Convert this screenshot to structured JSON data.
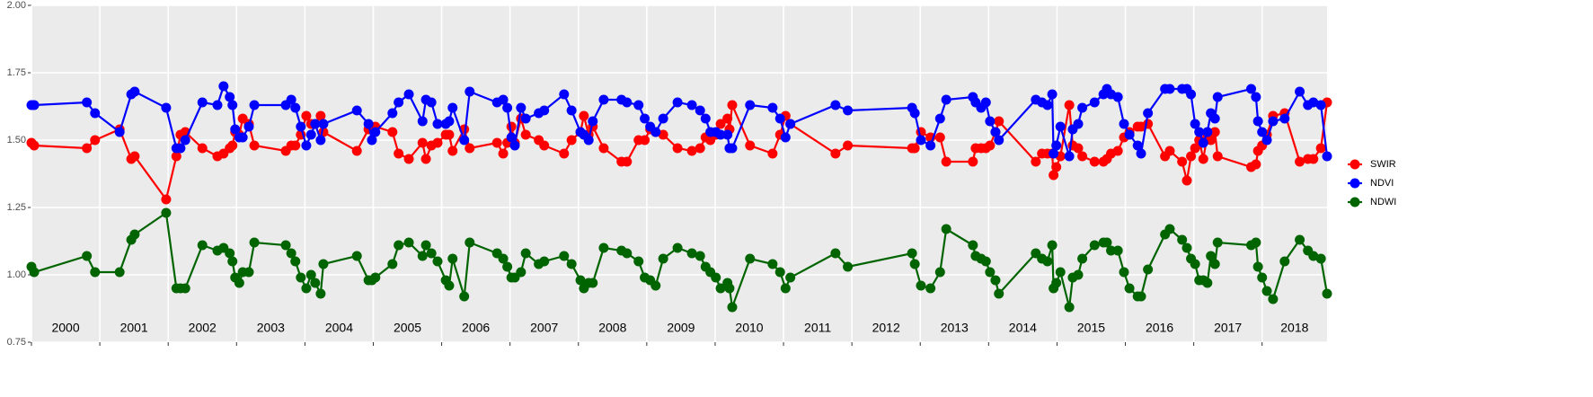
{
  "chart_data": {
    "type": "line",
    "x": [
      2000.0,
      2000.04,
      2000.81,
      2000.93,
      2001.29,
      2001.46,
      2001.51,
      2001.97,
      2002.12,
      2002.18,
      2002.25,
      2002.5,
      2002.72,
      2002.81,
      2002.9,
      2002.94,
      2002.98,
      2003.04,
      2003.09,
      2003.18,
      2003.26,
      2003.72,
      2003.8,
      2003.86,
      2003.94,
      2004.02,
      2004.09,
      2004.15,
      2004.23,
      2004.27,
      2004.76,
      2004.93,
      2004.98,
      2005.03,
      2005.28,
      2005.37,
      2005.52,
      2005.72,
      2005.77,
      2005.85,
      2005.94,
      2006.06,
      2006.11,
      2006.16,
      2006.33,
      2006.41,
      2006.81,
      2006.9,
      2006.96,
      2007.02,
      2007.07,
      2007.16,
      2007.23,
      2007.42,
      2007.5,
      2007.79,
      2007.9,
      2008.03,
      2008.08,
      2008.15,
      2008.21,
      2008.37,
      2008.63,
      2008.71,
      2008.88,
      2008.97,
      2009.05,
      2009.13,
      2009.24,
      2009.45,
      2009.66,
      2009.78,
      2009.86,
      2009.93,
      2010.01,
      2010.08,
      2010.18,
      2010.21,
      2010.25,
      2010.51,
      2010.84,
      2010.95,
      2011.03,
      2011.1,
      2011.76,
      2011.94,
      2012.88,
      2012.92,
      2013.01,
      2013.15,
      2013.29,
      2013.38,
      2013.77,
      2013.81,
      2013.89,
      2013.96,
      2014.02,
      2014.1,
      2014.15,
      2014.69,
      2014.78,
      2014.86,
      2014.93,
      2014.95,
      2014.99,
      2015.05,
      2015.18,
      2015.23,
      2015.31,
      2015.37,
      2015.55,
      2015.68,
      2015.73,
      2015.79,
      2015.89,
      2015.98,
      2016.06,
      2016.18,
      2016.23,
      2016.33,
      2016.58,
      2016.65,
      2016.83,
      2016.9,
      2016.96,
      2017.02,
      2017.08,
      2017.14,
      2017.2,
      2017.25,
      2017.31,
      2017.35,
      2017.84,
      2017.91,
      2017.94,
      2018.0,
      2018.07,
      2018.16,
      2018.33,
      2018.55,
      2018.67,
      2018.75,
      2018.86,
      2018.95
    ],
    "series": [
      {
        "name": "SWIR",
        "color": "#ff0000",
        "values": [
          1.49,
          1.48,
          1.47,
          1.5,
          1.54,
          1.43,
          1.44,
          1.28,
          1.44,
          1.52,
          1.53,
          1.47,
          1.44,
          1.45,
          1.47,
          1.48,
          1.53,
          1.52,
          1.58,
          1.56,
          1.48,
          1.46,
          1.48,
          1.48,
          1.52,
          1.59,
          1.56,
          1.56,
          1.59,
          1.53,
          1.46,
          1.54,
          1.54,
          1.55,
          1.53,
          1.45,
          1.43,
          1.49,
          1.43,
          1.48,
          1.49,
          1.52,
          1.52,
          1.46,
          1.54,
          1.47,
          1.49,
          1.45,
          1.49,
          1.55,
          1.49,
          1.58,
          1.52,
          1.5,
          1.48,
          1.45,
          1.5,
          1.53,
          1.59,
          1.52,
          1.55,
          1.47,
          1.42,
          1.42,
          1.5,
          1.5,
          1.54,
          1.53,
          1.52,
          1.47,
          1.46,
          1.47,
          1.51,
          1.5,
          1.52,
          1.56,
          1.58,
          1.54,
          1.63,
          1.48,
          1.45,
          1.52,
          1.59,
          1.56,
          1.45,
          1.48,
          1.47,
          1.47,
          1.53,
          1.51,
          1.51,
          1.42,
          1.42,
          1.47,
          1.47,
          1.47,
          1.48,
          1.53,
          1.57,
          1.42,
          1.45,
          1.45,
          1.45,
          1.37,
          1.4,
          1.44,
          1.63,
          1.48,
          1.47,
          1.44,
          1.42,
          1.42,
          1.43,
          1.45,
          1.46,
          1.51,
          1.53,
          1.55,
          1.55,
          1.56,
          1.44,
          1.46,
          1.42,
          1.35,
          1.44,
          1.47,
          1.5,
          1.43,
          1.52,
          1.5,
          1.53,
          1.44,
          1.4,
          1.41,
          1.46,
          1.48,
          1.52,
          1.59,
          1.6,
          1.42,
          1.43,
          1.43,
          1.47,
          1.64
        ]
      },
      {
        "name": "NDVI",
        "color": "#0000ff",
        "values": [
          1.63,
          1.63,
          1.64,
          1.6,
          1.53,
          1.67,
          1.68,
          1.62,
          1.47,
          1.47,
          1.5,
          1.64,
          1.63,
          1.7,
          1.66,
          1.63,
          1.54,
          1.51,
          1.51,
          1.55,
          1.63,
          1.63,
          1.65,
          1.62,
          1.55,
          1.48,
          1.52,
          1.56,
          1.5,
          1.56,
          1.61,
          1.56,
          1.5,
          1.53,
          1.6,
          1.64,
          1.67,
          1.57,
          1.65,
          1.64,
          1.56,
          1.56,
          1.57,
          1.62,
          1.5,
          1.68,
          1.64,
          1.65,
          1.62,
          1.51,
          1.48,
          1.62,
          1.58,
          1.6,
          1.61,
          1.67,
          1.61,
          1.53,
          1.52,
          1.5,
          1.57,
          1.65,
          1.65,
          1.64,
          1.63,
          1.58,
          1.55,
          1.53,
          1.58,
          1.64,
          1.63,
          1.61,
          1.58,
          1.53,
          1.53,
          1.52,
          1.52,
          1.47,
          1.47,
          1.63,
          1.62,
          1.58,
          1.51,
          1.56,
          1.63,
          1.61,
          1.62,
          1.6,
          1.5,
          1.48,
          1.58,
          1.65,
          1.66,
          1.64,
          1.62,
          1.64,
          1.57,
          1.53,
          1.5,
          1.65,
          1.64,
          1.63,
          1.67,
          1.45,
          1.48,
          1.55,
          1.44,
          1.54,
          1.56,
          1.62,
          1.64,
          1.67,
          1.69,
          1.67,
          1.66,
          1.56,
          1.52,
          1.48,
          1.45,
          1.6,
          1.69,
          1.69,
          1.69,
          1.69,
          1.67,
          1.56,
          1.53,
          1.49,
          1.53,
          1.6,
          1.58,
          1.66,
          1.69,
          1.66,
          1.57,
          1.53,
          1.5,
          1.57,
          1.58,
          1.68,
          1.63,
          1.64,
          1.63,
          1.44
        ]
      },
      {
        "name": "NDWI",
        "color": "#006400",
        "values": [
          1.03,
          1.01,
          1.07,
          1.01,
          1.01,
          1.13,
          1.15,
          1.23,
          0.95,
          0.95,
          0.95,
          1.11,
          1.09,
          1.1,
          1.08,
          1.05,
          0.99,
          0.97,
          1.01,
          1.01,
          1.12,
          1.11,
          1.08,
          1.05,
          0.99,
          0.95,
          1.0,
          0.97,
          0.93,
          1.04,
          1.07,
          0.98,
          0.98,
          0.99,
          1.04,
          1.11,
          1.12,
          1.07,
          1.11,
          1.08,
          1.05,
          0.98,
          0.96,
          1.06,
          0.92,
          1.12,
          1.08,
          1.06,
          1.03,
          0.99,
          0.99,
          1.01,
          1.08,
          1.04,
          1.05,
          1.07,
          1.04,
          0.98,
          0.95,
          0.97,
          0.97,
          1.1,
          1.09,
          1.08,
          1.05,
          0.99,
          0.98,
          0.96,
          1.06,
          1.1,
          1.08,
          1.07,
          1.03,
          1.01,
          0.99,
          0.95,
          0.97,
          0.95,
          0.88,
          1.06,
          1.04,
          1.01,
          0.95,
          0.99,
          1.08,
          1.03,
          1.08,
          1.04,
          0.96,
          0.95,
          1.01,
          1.17,
          1.11,
          1.07,
          1.06,
          1.05,
          1.01,
          0.98,
          0.93,
          1.08,
          1.06,
          1.05,
          1.11,
          0.95,
          0.97,
          1.01,
          0.88,
          0.99,
          1.0,
          1.06,
          1.11,
          1.12,
          1.12,
          1.09,
          1.09,
          1.01,
          0.95,
          0.92,
          0.92,
          1.02,
          1.15,
          1.17,
          1.13,
          1.1,
          1.06,
          1.04,
          0.98,
          0.98,
          0.97,
          1.07,
          1.04,
          1.12,
          1.11,
          1.12,
          1.03,
          0.99,
          0.94,
          0.91,
          1.05,
          1.13,
          1.09,
          1.07,
          1.06,
          0.93
        ]
      }
    ],
    "xlim": [
      2000,
      2018.95
    ],
    "xticks": [
      {
        "value": 2000,
        "label": "2000"
      },
      {
        "value": 2001,
        "label": "2001"
      },
      {
        "value": 2002,
        "label": "2002"
      },
      {
        "value": 2003,
        "label": "2003"
      },
      {
        "value": 2004,
        "label": "2004"
      },
      {
        "value": 2005,
        "label": "2005"
      },
      {
        "value": 2006,
        "label": "2006"
      },
      {
        "value": 2007,
        "label": "2007"
      },
      {
        "value": 2008,
        "label": "2008"
      },
      {
        "value": 2009,
        "label": "2009"
      },
      {
        "value": 2010,
        "label": "2010"
      },
      {
        "value": 2011,
        "label": "2011"
      },
      {
        "value": 2012,
        "label": "2012"
      },
      {
        "value": 2013,
        "label": "2013"
      },
      {
        "value": 2014,
        "label": "2014"
      },
      {
        "value": 2015,
        "label": "2015"
      },
      {
        "value": 2016,
        "label": "2016"
      },
      {
        "value": 2017,
        "label": "2017"
      },
      {
        "value": 2018,
        "label": "2018"
      }
    ],
    "ylim": [
      0.75,
      2.0
    ],
    "yticks": [
      {
        "value": 0.75,
        "label": "0.75"
      },
      {
        "value": 1.0,
        "label": "1.00"
      },
      {
        "value": 1.25,
        "label": "1.25"
      },
      {
        "value": 1.5,
        "label": "1.50"
      },
      {
        "value": 1.75,
        "label": "1.75"
      },
      {
        "value": 2.0,
        "label": "2.00"
      }
    ],
    "grid": true,
    "legend": "right"
  }
}
